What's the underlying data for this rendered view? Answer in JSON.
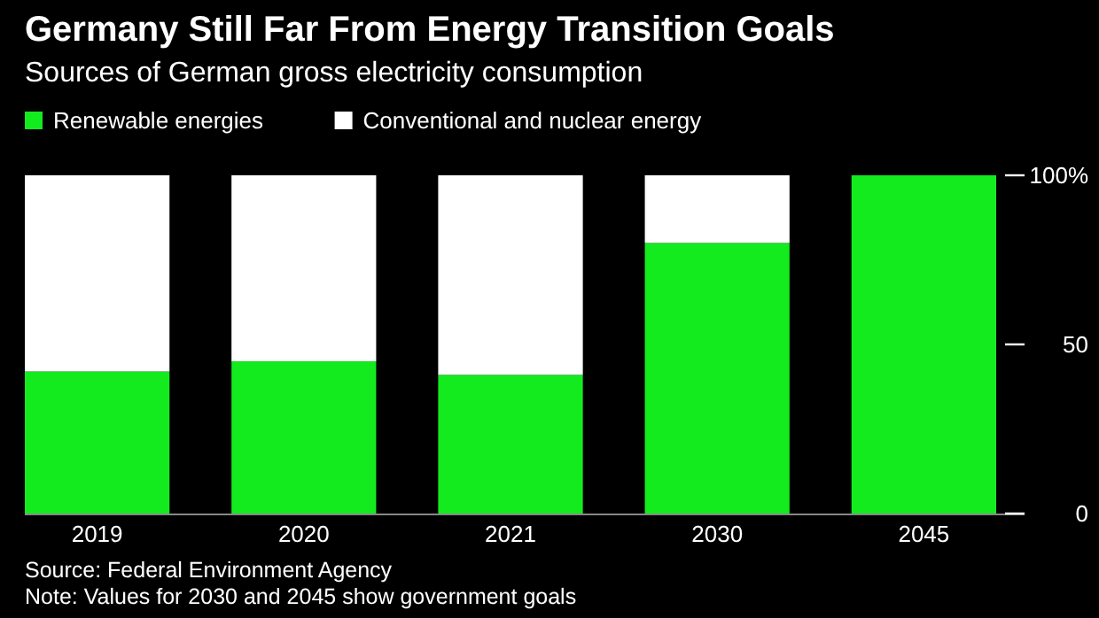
{
  "chart_data": {
    "type": "bar",
    "title": "Germany Still Far From Energy Transition Goals",
    "subtitle": "Sources of German gross electricity consumption",
    "categories": [
      "2019",
      "2020",
      "2021",
      "2030",
      "2045"
    ],
    "series": [
      {
        "name": "Renewable energies",
        "color": "#13eb1f",
        "values": [
          42,
          45,
          41,
          80,
          100
        ]
      },
      {
        "name": "Conventional and nuclear energy",
        "color": "#ffffff",
        "values": [
          58,
          55,
          59,
          20,
          0
        ]
      }
    ],
    "stacked": true,
    "ylim": [
      0,
      100
    ],
    "yticks": [
      0,
      50,
      {
        "value": 100,
        "label": "100%"
      }
    ],
    "legend": "top left",
    "annotations": [
      "Source: Federal Environment Agency",
      "Note: Values for 2030 and 2045 show government goals"
    ]
  }
}
